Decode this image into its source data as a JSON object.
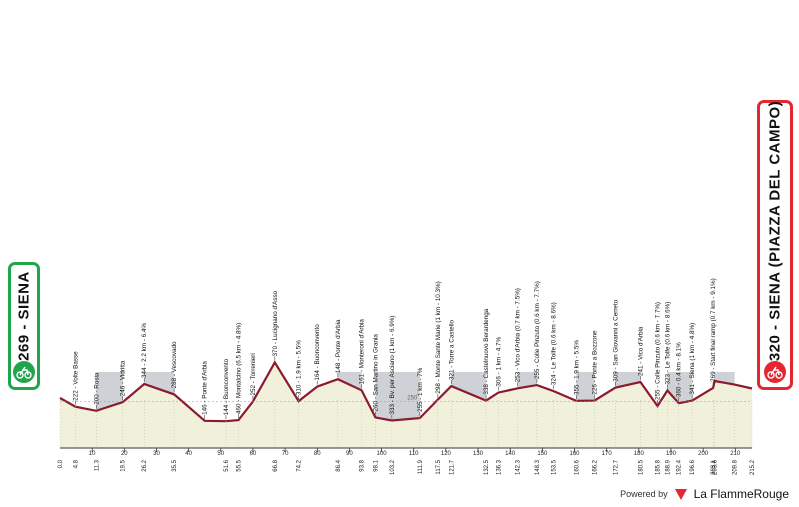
{
  "chart_data": {
    "type": "area",
    "start_label": "269 - SIENA",
    "finish_label": "320 - SIENA (PIAZZA DEL CAMPO)",
    "reference_altitude_label": "250",
    "km_ticks": [
      "10",
      "20",
      "30",
      "40",
      "50",
      "60",
      "70",
      "80",
      "90",
      "100",
      "110",
      "120",
      "130",
      "140",
      "150",
      "160",
      "170",
      "180",
      "190",
      "200",
      "210"
    ],
    "km_markers": [
      "0.0",
      "4.8",
      "11.3",
      "19.5",
      "26.2",
      "35.5",
      "51.6",
      "55.5",
      "66.8",
      "74.2",
      "86.4",
      "93.8",
      "98.1",
      "103.2",
      "111.9",
      "117.5",
      "121.7",
      "132.5",
      "136.3",
      "142.3",
      "148.3",
      "153.5",
      "160.6",
      "166.2",
      "172.7",
      "180.5",
      "185.8",
      "188.9",
      "192.4",
      "196.6",
      "203.1",
      "203.6",
      "209.8",
      "215.2"
    ],
    "x": [
      0,
      4.8,
      11.3,
      19.5,
      26.2,
      35.5,
      45,
      51.6,
      55.5,
      60,
      66.8,
      74.2,
      80,
      86.4,
      93.8,
      98.1,
      103.2,
      111.9,
      117.5,
      121.7,
      132.5,
      136.3,
      142.3,
      148.3,
      153.5,
      160.6,
      166.2,
      172.7,
      180.5,
      185.8,
      188.9,
      192.4,
      196.6,
      203.1,
      203.6,
      209.8,
      215.2
    ],
    "altitude": [
      269,
      222,
      200,
      246,
      344,
      288,
      146,
      144,
      150,
      250,
      460,
      252,
      330,
      370,
      310,
      164,
      148,
      161,
      260,
      333,
      255,
      298,
      321,
      338,
      306,
      253,
      255,
      324,
      355,
      226,
      309,
      241,
      255,
      323,
      360,
      341,
      320
    ],
    "annotations": [
      {
        "text": "222 - Volte Basse"
      },
      {
        "text": "200 - Rosia"
      },
      {
        "text": "246 - Vidritta"
      },
      {
        "text": "344 - 2.2 km - 6.4%"
      },
      {
        "text": "288 - Vescovado"
      },
      {
        "text": "146 - Ponte d'Arbia"
      },
      {
        "text": "144 - Buonconvento"
      },
      {
        "text": "460 - Montalcino (6.5 km - 4.8%)"
      },
      {
        "text": "252 - Torrenieri"
      },
      {
        "text": "370 - Lucignano d'Asso"
      },
      {
        "text": "310 - 1.9 km - 5.5%"
      },
      {
        "text": "164 - Buonconvento"
      },
      {
        "text": "148 - Ponte d'Arbia"
      },
      {
        "text": "161 - Monteroni d'Arbia"
      },
      {
        "text": "260 - San Martino in Grania"
      },
      {
        "text": "333 - Bv. per Asciano (1 km - 6.9%)"
      },
      {
        "text": "255 - 1 km - 7%"
      },
      {
        "text": "298 - Monte Sante Marie (1 km - 10.3%)"
      },
      {
        "text": "321 - Torre a Castello"
      },
      {
        "text": "338 - Castelnuovo Berardenga"
      },
      {
        "text": "306 - 1 km - 4.7%"
      },
      {
        "text": "253 - Vico d'Arbia (0.7 km - 7.5%)"
      },
      {
        "text": "255 - Colle Pinzuto (0.6 km - 7.7%)"
      },
      {
        "text": "324 - Le Tolfe (0.6 km - 8.6%)"
      },
      {
        "text": "355 - 1.9 km - 5.5%"
      },
      {
        "text": "226 - Ponte a Bozzone"
      },
      {
        "text": "309 - San Giovanni a Cerreto"
      },
      {
        "text": "241 - Vico d'Arbia"
      },
      {
        "text": "255 - Colle Pinzuto (0.6 km - 7.7%)"
      },
      {
        "text": "323 - Le Tolfe (0.6 km - 8.6%)"
      },
      {
        "text": "360 - 0.4 km - 8.1%"
      },
      {
        "text": "341 - Siena (1 km - 4.8%)"
      },
      {
        "text": "269 - Start final ramp (0.7 km - 9.1%)"
      }
    ],
    "grid": false,
    "legend": "none"
  },
  "footer": {
    "powered_by": "Powered by",
    "brand": "La FlammeRouge"
  },
  "colors": {
    "sector": "#c9ccd0",
    "sector_dark": "#6d6d6d",
    "road_line": "#8b1a2e",
    "start": "#1fa64a",
    "finish": "#e3262f",
    "fill": "#efefd6"
  }
}
